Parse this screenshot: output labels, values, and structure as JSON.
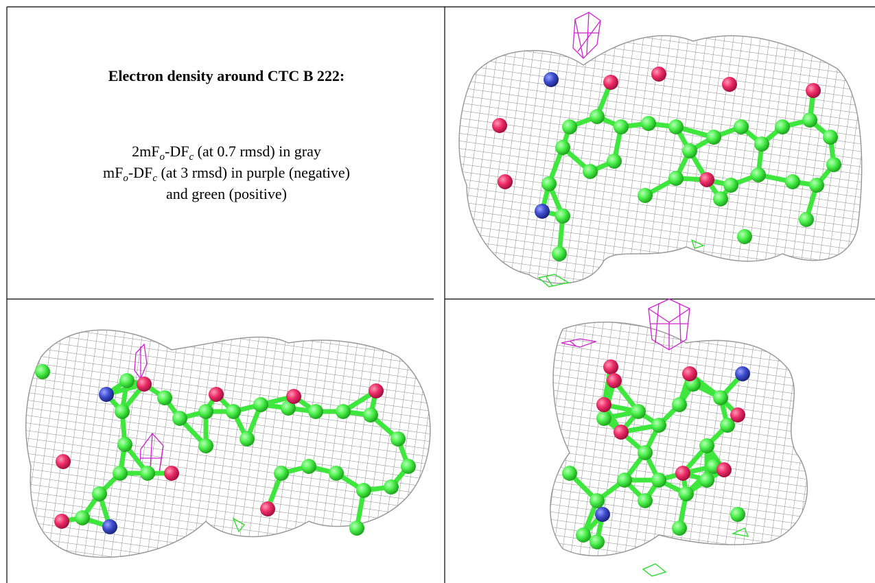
{
  "caption": {
    "title": "Electron density around CTC B 222:",
    "lines": [
      [
        "2mF",
        "o",
        "-DF",
        "c",
        " (at 0.7 rmsd) in gray"
      ],
      [
        "mF",
        "o",
        "-DF",
        "c",
        " (at 3 rmsd) in purple (negative)"
      ],
      [
        "and green (positive)"
      ]
    ]
  }
}
